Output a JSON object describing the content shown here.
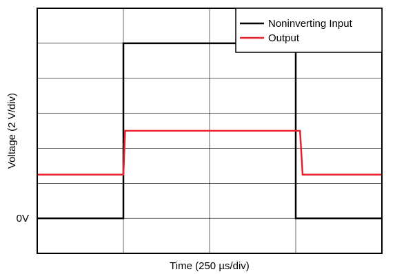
{
  "chart_data": {
    "type": "line",
    "xlabel_prefix": "Time (250 ",
    "xlabel_unit_symbol": "µ",
    "xlabel_suffix": "s/div)",
    "ylabel": "Voltage (2 V/div)",
    "y_tick_labels": [
      {
        "value": 0,
        "label": "0V"
      }
    ],
    "x_divisions": 4,
    "y_divisions": 7,
    "xlim": [
      0,
      4
    ],
    "ylim": [
      -1,
      6
    ],
    "grid": true,
    "legend_position": "top-right",
    "series": [
      {
        "name": "Noninverting Input",
        "color": "#000000",
        "x": [
          0,
          1.0,
          1.0,
          3.0,
          3.0,
          4.0
        ],
        "y": [
          0,
          0,
          5.0,
          5.0,
          0,
          0
        ]
      },
      {
        "name": "Output",
        "color": "#e8202a",
        "x": [
          0,
          1.0,
          1.02,
          3.05,
          3.08,
          4.0
        ],
        "y": [
          1.25,
          1.25,
          2.5,
          2.5,
          1.25,
          1.25
        ]
      }
    ]
  }
}
